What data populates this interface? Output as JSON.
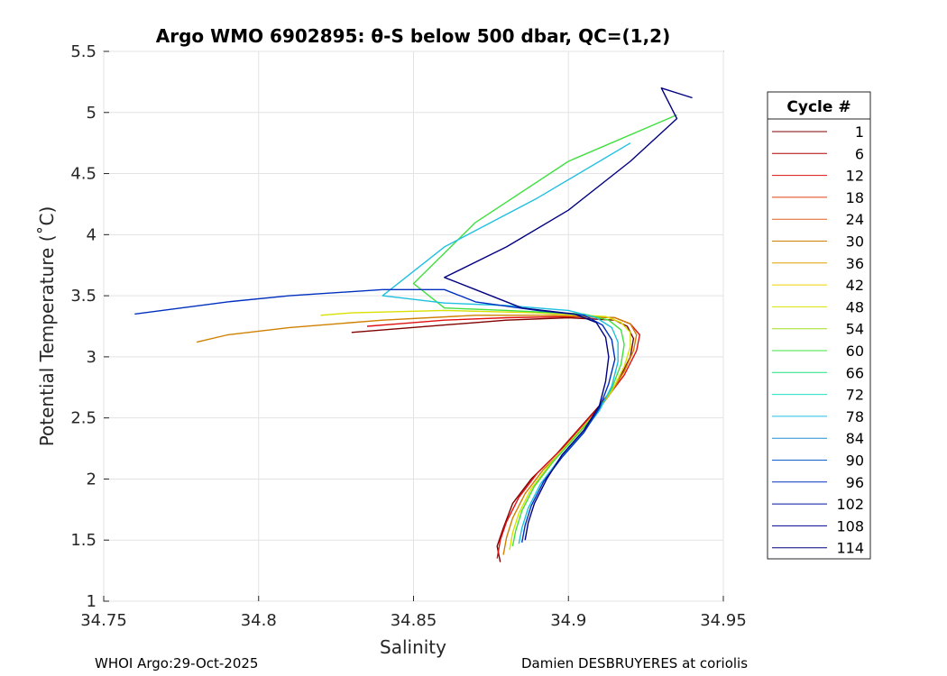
{
  "chart_data": {
    "type": "line",
    "title": "Argo WMO 6902895: θ-S below 500 dbar,  QC=(1,2)",
    "xlabel": "Salinity",
    "ylabel": "Potential Temperature (˚C)",
    "xlim": [
      34.75,
      34.95
    ],
    "ylim": [
      1,
      5.5
    ],
    "xticks": [
      "34.75",
      "34.8",
      "34.85",
      "34.9",
      "34.95"
    ],
    "yticks": [
      "1",
      "1.5",
      "2",
      "2.5",
      "3",
      "3.5",
      "4",
      "4.5",
      "5",
      "5.5"
    ],
    "grid": true,
    "legend": {
      "title": "Cycle #",
      "placement": "right-outside",
      "entries": [
        "1",
        "6",
        "12",
        "18",
        "24",
        "30",
        "36",
        "42",
        "48",
        "54",
        "60",
        "66",
        "72",
        "78",
        "84",
        "90",
        "96",
        "102",
        "108",
        "114"
      ],
      "colors": [
        "#800000",
        "#b00000",
        "#e01010",
        "#e04010",
        "#e06020",
        "#d08000",
        "#e0a000",
        "#f0d000",
        "#d8e000",
        "#a0e020",
        "#40e040",
        "#20e080",
        "#20e0c0",
        "#20c0e0",
        "#2090d0",
        "#1060d0",
        "#0030c0",
        "#0010a0",
        "#000090",
        "#000080"
      ]
    },
    "series": [
      {
        "name": "1",
        "x": [
          34.878,
          34.877,
          34.879,
          34.882,
          34.888,
          34.896,
          34.903,
          34.91,
          34.916,
          34.92,
          34.921,
          34.919,
          34.915,
          34.9,
          34.88,
          34.86,
          34.84,
          34.83
        ],
        "y": [
          1.32,
          1.45,
          1.6,
          1.8,
          2.0,
          2.2,
          2.4,
          2.6,
          2.8,
          3.0,
          3.15,
          3.25,
          3.3,
          3.32,
          3.3,
          3.26,
          3.22,
          3.2
        ]
      },
      {
        "name": "12",
        "x": [
          34.877,
          34.878,
          34.88,
          34.884,
          34.89,
          34.898,
          34.905,
          34.912,
          34.918,
          34.922,
          34.923,
          34.92,
          34.915,
          34.9,
          34.88,
          34.86,
          34.845,
          34.835
        ],
        "y": [
          1.35,
          1.5,
          1.65,
          1.85,
          2.05,
          2.25,
          2.45,
          2.65,
          2.85,
          3.05,
          3.18,
          3.27,
          3.32,
          3.33,
          3.32,
          3.3,
          3.27,
          3.25
        ]
      },
      {
        "name": "30",
        "x": [
          34.879,
          34.88,
          34.882,
          34.886,
          34.892,
          34.9,
          34.907,
          34.913,
          34.918,
          34.921,
          34.922,
          34.92,
          34.915,
          34.895,
          34.87,
          34.84,
          34.81,
          34.79,
          34.78
        ],
        "y": [
          1.38,
          1.52,
          1.68,
          1.88,
          2.08,
          2.28,
          2.48,
          2.68,
          2.88,
          3.05,
          3.18,
          3.27,
          3.32,
          3.34,
          3.34,
          3.3,
          3.24,
          3.18,
          3.12
        ]
      },
      {
        "name": "48",
        "x": [
          34.881,
          34.882,
          34.884,
          34.888,
          34.894,
          34.901,
          34.908,
          34.914,
          34.918,
          34.92,
          34.92,
          34.917,
          34.912,
          34.89,
          34.86,
          34.83,
          34.82
        ],
        "y": [
          1.42,
          1.56,
          1.72,
          1.92,
          2.12,
          2.32,
          2.52,
          2.72,
          2.92,
          3.08,
          3.2,
          3.28,
          3.33,
          3.36,
          3.38,
          3.36,
          3.34
        ]
      },
      {
        "name": "60",
        "x": [
          34.882,
          34.883,
          34.885,
          34.889,
          34.895,
          34.902,
          34.909,
          34.914,
          34.917,
          34.918,
          34.917,
          34.913,
          34.905,
          34.88,
          34.86,
          34.85,
          34.87,
          34.9,
          34.935
        ],
        "y": [
          1.45,
          1.58,
          1.74,
          1.94,
          2.14,
          2.34,
          2.54,
          2.74,
          2.94,
          3.1,
          3.22,
          3.3,
          3.35,
          3.38,
          3.4,
          3.6,
          4.1,
          4.6,
          4.98
        ]
      },
      {
        "name": "78",
        "x": [
          34.884,
          34.885,
          34.887,
          34.891,
          34.897,
          34.904,
          34.91,
          34.914,
          34.916,
          34.916,
          34.914,
          34.909,
          34.9,
          34.88,
          34.86,
          34.84,
          34.86,
          34.89,
          34.92
        ],
        "y": [
          1.47,
          1.6,
          1.76,
          1.96,
          2.16,
          2.36,
          2.56,
          2.76,
          2.96,
          3.12,
          3.24,
          3.32,
          3.38,
          3.42,
          3.44,
          3.5,
          3.9,
          4.3,
          4.75
        ]
      },
      {
        "name": "96",
        "x": [
          34.885,
          34.886,
          34.888,
          34.892,
          34.898,
          34.905,
          34.91,
          34.913,
          34.915,
          34.914,
          34.911,
          34.905,
          34.89,
          34.87,
          34.86,
          34.84,
          34.81,
          34.79,
          34.76
        ],
        "y": [
          1.48,
          1.62,
          1.78,
          1.98,
          2.18,
          2.38,
          2.58,
          2.78,
          2.98,
          3.14,
          3.26,
          3.34,
          3.38,
          3.45,
          3.55,
          3.55,
          3.5,
          3.45,
          3.35
        ]
      },
      {
        "name": "114",
        "x": [
          34.886,
          34.887,
          34.889,
          34.893,
          34.898,
          34.905,
          34.91,
          34.912,
          34.913,
          34.912,
          34.909,
          34.902,
          34.885,
          34.87,
          34.86,
          34.88,
          34.9,
          34.92,
          34.935,
          34.93,
          34.94
        ],
        "y": [
          1.5,
          1.64,
          1.8,
          2.0,
          2.2,
          2.4,
          2.6,
          2.8,
          3.0,
          3.16,
          3.28,
          3.35,
          3.4,
          3.55,
          3.65,
          3.9,
          4.2,
          4.6,
          4.95,
          5.2,
          5.12
        ]
      }
    ]
  },
  "footer": {
    "left": "WHOI Argo:29-Oct-2025",
    "right": "Damien DESBRUYERES at coriolis"
  }
}
